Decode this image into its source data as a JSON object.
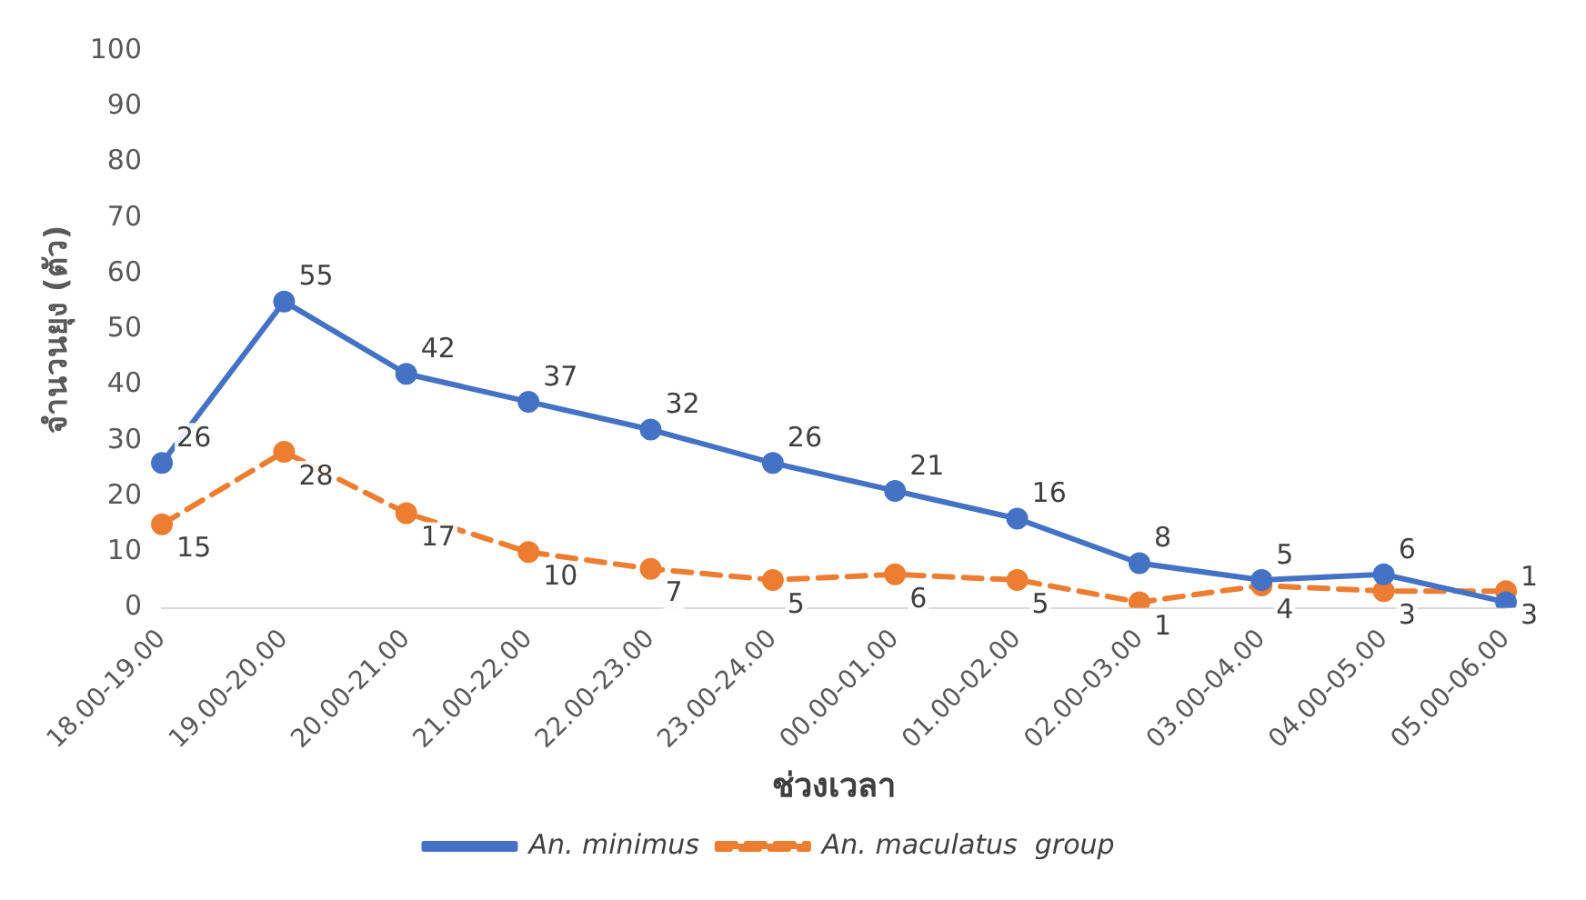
{
  "chart_data": {
    "type": "line",
    "xlabel": "ช่วงเวลา",
    "ylabel": "จำนวนยุง (ตัว)",
    "categories": [
      "18.00-19.00",
      "19.00-20.00",
      "20.00-21.00",
      "21.00-22.00",
      "22.00-23.00",
      "23.00-24.00",
      "00.00-01.00",
      "01.00-02.00",
      "02.00-03.00",
      "03.00-04.00",
      "04.00-05.00",
      "05.00-06.00"
    ],
    "series": [
      {
        "name": "An. minimus",
        "color": "#4472c4",
        "line_style": "solid",
        "values": [
          26,
          55,
          42,
          37,
          32,
          26,
          21,
          16,
          8,
          5,
          6,
          1
        ]
      },
      {
        "name": "An. maculatus  group",
        "color": "#ed7d31",
        "line_style": "dashed",
        "values": [
          15,
          28,
          17,
          10,
          7,
          5,
          6,
          5,
          1,
          4,
          3,
          3
        ]
      }
    ],
    "ylim": [
      0,
      100
    ],
    "yticks": [
      0,
      10,
      20,
      30,
      40,
      50,
      60,
      70,
      80,
      90,
      100
    ],
    "grid": false,
    "legend": "bottom",
    "marker": "circle",
    "data_labels": true
  }
}
